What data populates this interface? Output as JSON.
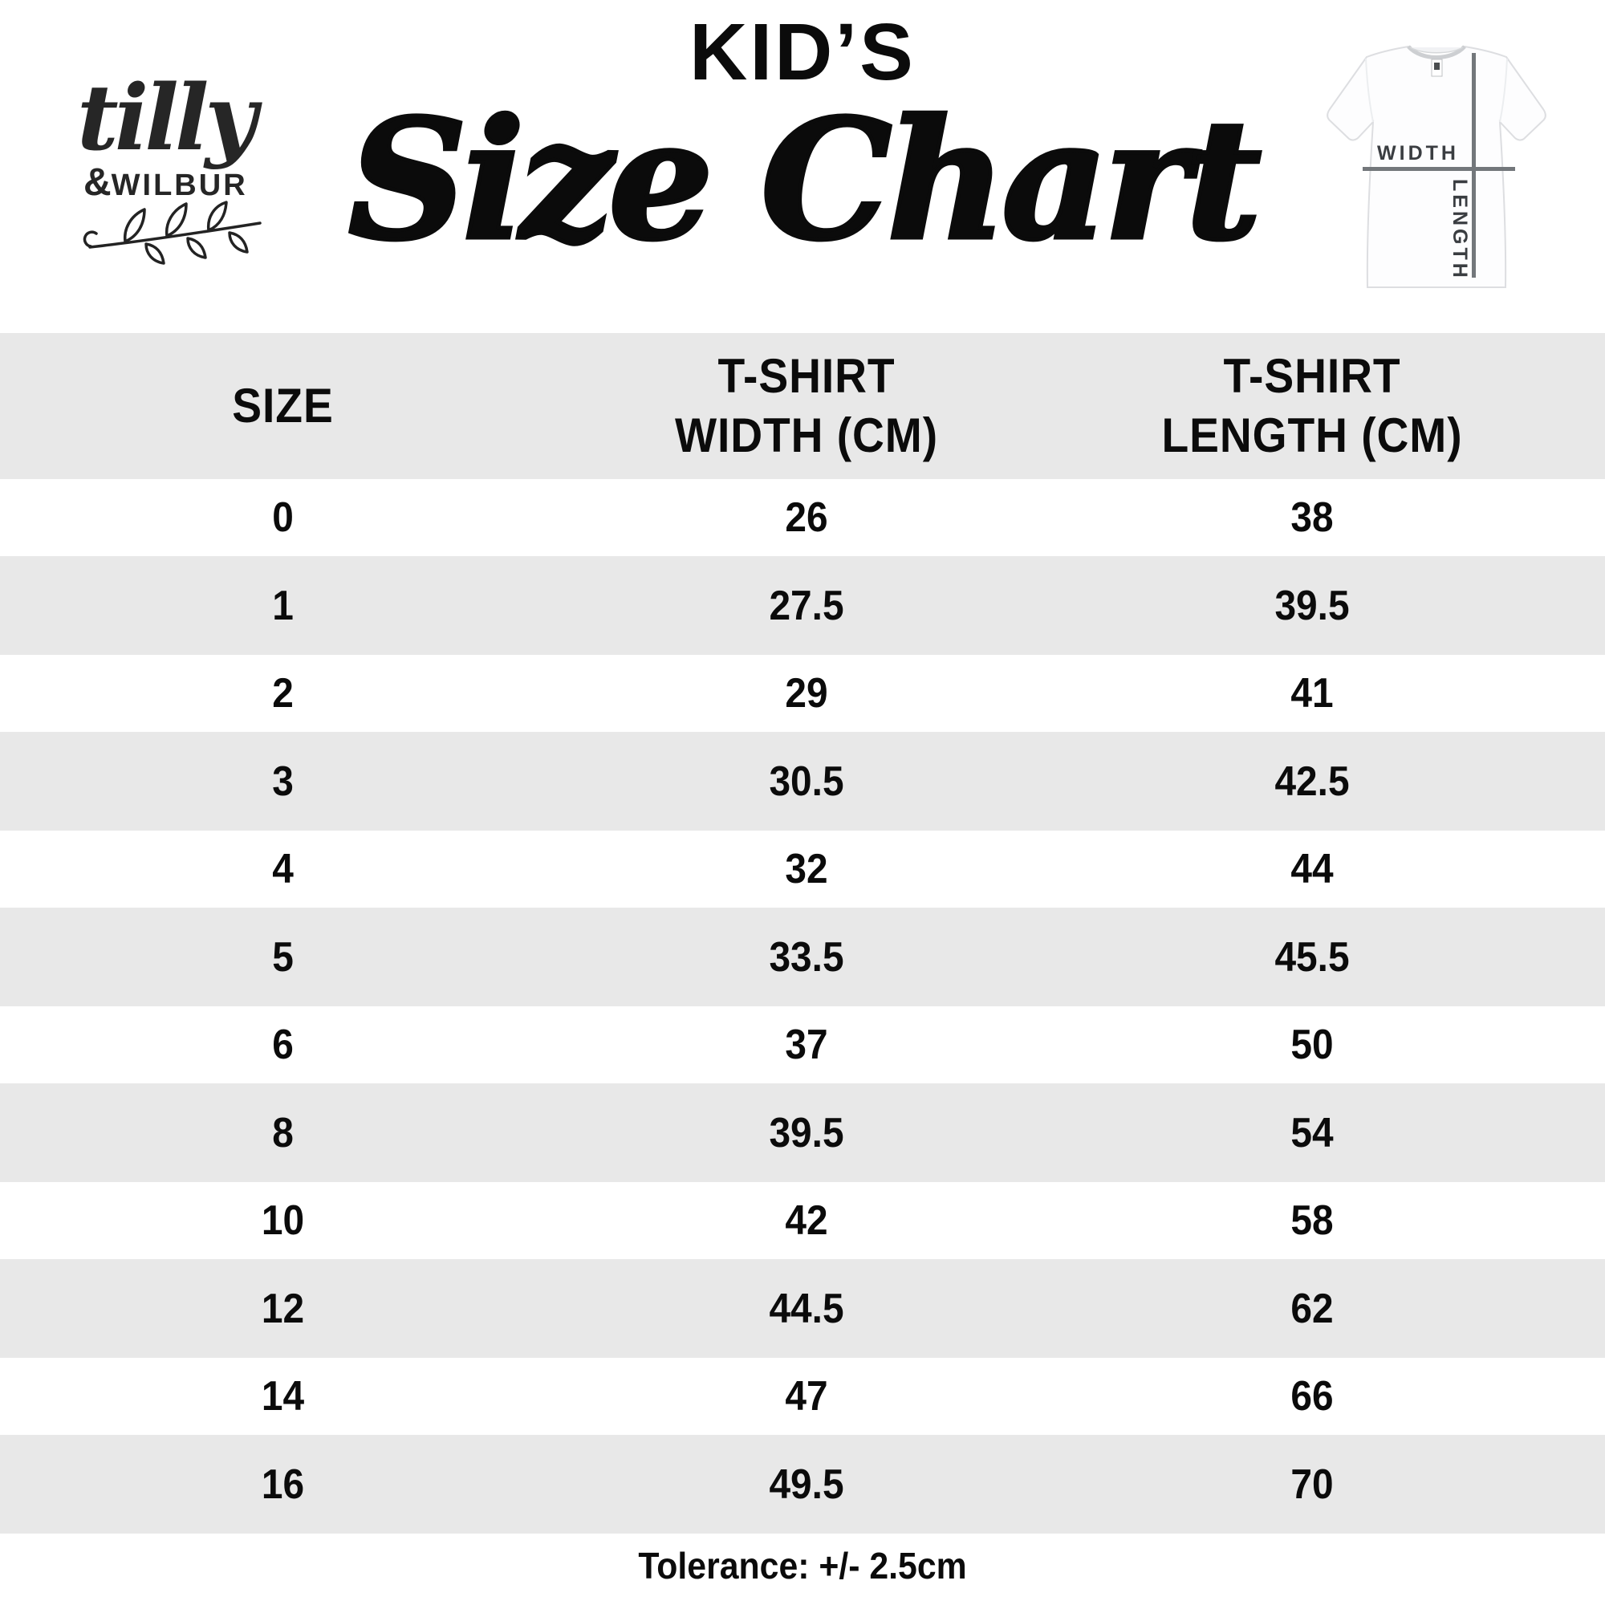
{
  "brand": {
    "script": "tilly",
    "amp": "&",
    "caps": "WILBUR"
  },
  "title": {
    "kicker": "KID’S",
    "main": "Size Chart"
  },
  "shirt_diagram": {
    "width_label": "WIDTH",
    "length_label": "LENGTH"
  },
  "table": {
    "headers": [
      {
        "lines": [
          "SIZE"
        ]
      },
      {
        "lines": [
          "T-SHIRT",
          "WIDTH (CM)"
        ]
      },
      {
        "lines": [
          "T-SHIRT",
          "LENGTH (CM)"
        ]
      }
    ],
    "rows": [
      [
        "0",
        "26",
        "38"
      ],
      [
        "1",
        "27.5",
        "39.5"
      ],
      [
        "2",
        "29",
        "41"
      ],
      [
        "3",
        "30.5",
        "42.5"
      ],
      [
        "4",
        "32",
        "44"
      ],
      [
        "5",
        "33.5",
        "45.5"
      ],
      [
        "6",
        "37",
        "50"
      ],
      [
        "8",
        "39.5",
        "54"
      ],
      [
        "10",
        "42",
        "58"
      ],
      [
        "12",
        "44.5",
        "62"
      ],
      [
        "14",
        "47",
        "66"
      ],
      [
        "16",
        "49.5",
        "70"
      ]
    ]
  },
  "footer": {
    "tolerance": "Tolerance: +/- 2.5cm"
  },
  "chart_data": {
    "type": "table",
    "title": "KID'S Size Chart",
    "columns": [
      "SIZE",
      "T-SHIRT WIDTH (CM)",
      "T-SHIRT LENGTH (CM)"
    ],
    "rows": [
      [
        0,
        26,
        38
      ],
      [
        1,
        27.5,
        39.5
      ],
      [
        2,
        29,
        41
      ],
      [
        3,
        30.5,
        42.5
      ],
      [
        4,
        32,
        44
      ],
      [
        5,
        33.5,
        45.5
      ],
      [
        6,
        37,
        50
      ],
      [
        8,
        39.5,
        54
      ],
      [
        10,
        42,
        58
      ],
      [
        12,
        44.5,
        62
      ],
      [
        14,
        47,
        66
      ],
      [
        16,
        49.5,
        70
      ]
    ],
    "footnote": "Tolerance: +/- 2.5cm"
  },
  "colors": {
    "row_alt": "#e8e8e8",
    "ink": "#0b0b0b",
    "diagram_line": "#73777b",
    "diagram_label": "#3a3d41"
  }
}
